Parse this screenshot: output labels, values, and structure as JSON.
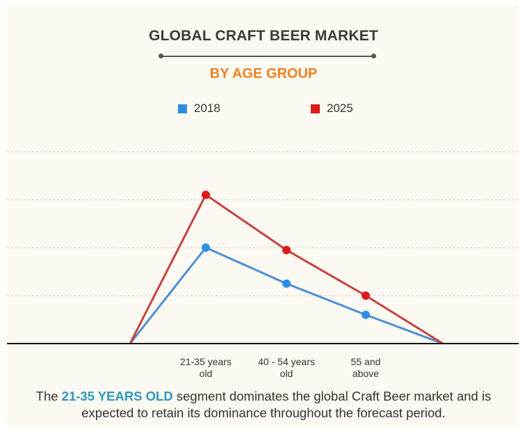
{
  "header": {
    "title": "GLOBAL CRAFT BEER MARKET",
    "subtitle": "BY AGE GROUP"
  },
  "legend": [
    {
      "label": "2018",
      "color": "#2e8fe0"
    },
    {
      "label": "2025",
      "color": "#e0191b"
    }
  ],
  "chart_data": {
    "type": "line",
    "title": "GLOBAL CRAFT BEER MARKET",
    "subtitle": "BY AGE GROUP",
    "categories": [
      "",
      "21-35 years old",
      "40 - 54 years old",
      "55 and above",
      ""
    ],
    "tick_lines": [
      [
        "21-35 years",
        "old"
      ],
      [
        "40 - 54 years",
        "old"
      ],
      [
        "55 and",
        "above"
      ]
    ],
    "series": [
      {
        "name": "2018",
        "color": "#4a8fd4",
        "marker": "#2e8fe0",
        "values": [
          0,
          2.0,
          1.25,
          0.6,
          0
        ]
      },
      {
        "name": "2025",
        "color": "#c94040",
        "marker": "#e0191b",
        "values": [
          0,
          3.1,
          1.95,
          1.0,
          0
        ]
      }
    ],
    "ylim": [
      0,
      4
    ],
    "grid": true,
    "legend_position": "top",
    "xlabel": "",
    "ylabel": ""
  },
  "caption": {
    "before": "The ",
    "highlight": "21-35 YEARS OLD",
    "after": " segment dominates the global Craft Beer market and is expected to retain its dominance throughout the forecast period."
  }
}
